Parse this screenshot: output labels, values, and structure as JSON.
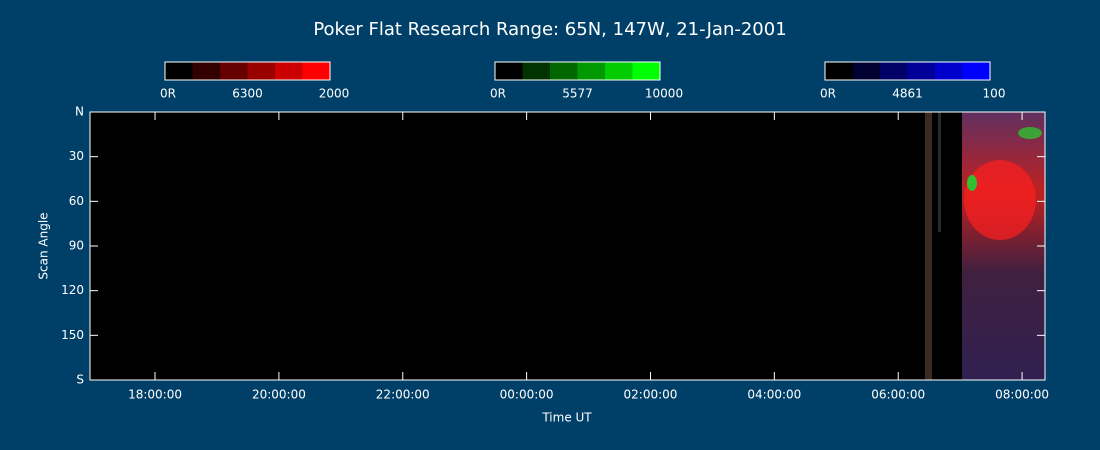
{
  "chart_data": {
    "type": "keogram",
    "title": "Poker Flat Research Range: 65N, 147W, 21-Jan-2001",
    "xlabel": "Time UT",
    "ylabel": "Scan Angle",
    "xlim": [
      16.95,
      32.37
    ],
    "xticks": [
      {
        "value": 18,
        "label": "18:00:00"
      },
      {
        "value": 20,
        "label": "20:00:00"
      },
      {
        "value": 22,
        "label": "22:00:00"
      },
      {
        "value": 24,
        "label": "00:00:00"
      },
      {
        "value": 26,
        "label": "02:00:00"
      },
      {
        "value": 28,
        "label": "04:00:00"
      },
      {
        "value": 30,
        "label": "06:00:00"
      },
      {
        "value": 32,
        "label": "08:00:00"
      }
    ],
    "ylim": [
      0,
      180
    ],
    "yticks": [
      {
        "value": 0,
        "label": "N"
      },
      30,
      60,
      90,
      120,
      150,
      {
        "value": 180,
        "label": "S"
      }
    ],
    "colorbars": [
      {
        "min_label": "0R",
        "name": "6300",
        "max": 2000,
        "color": "#ff0000"
      },
      {
        "min_label": "0R",
        "name": "5577",
        "max": 10000,
        "color": "#00ff00"
      },
      {
        "min_label": "0R",
        "name": "4861",
        "max": 100,
        "color": "#0000ff"
      }
    ]
  }
}
